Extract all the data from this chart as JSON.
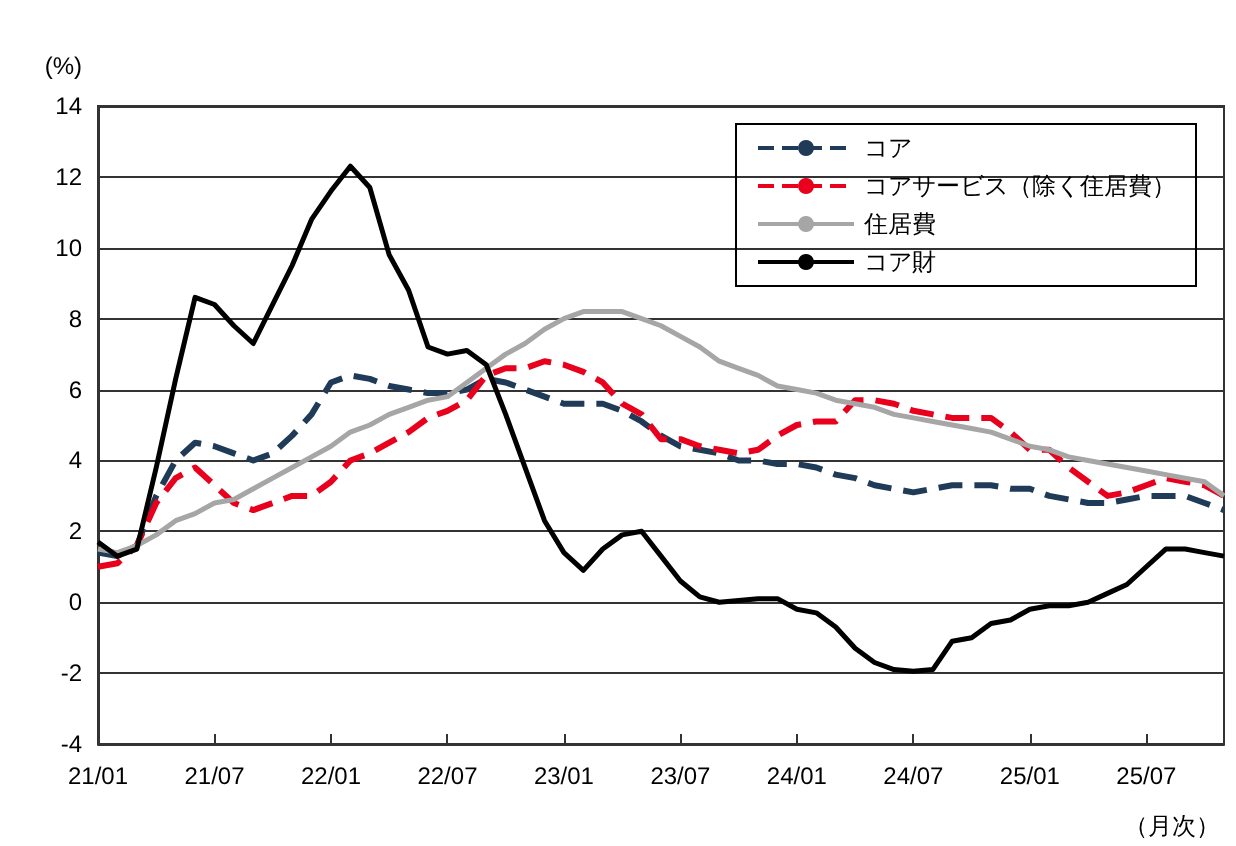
{
  "chart_data": {
    "type": "line",
    "ylabel": "(%)",
    "xlabel": "（月次）",
    "categories": [
      "21/01",
      null,
      null,
      null,
      null,
      null,
      "21/07",
      null,
      null,
      null,
      null,
      null,
      "22/01",
      null,
      null,
      null,
      null,
      null,
      "22/07",
      null,
      null,
      null,
      null,
      null,
      "23/01",
      null,
      null,
      null,
      null,
      null,
      "23/07",
      null,
      null,
      null,
      null,
      null,
      "24/01",
      null,
      null,
      null,
      null,
      null,
      "24/07",
      null,
      null,
      null,
      null,
      null,
      "25/01",
      null,
      null,
      null,
      null,
      null,
      "25/07",
      null,
      null,
      null,
      null
    ],
    "series": [
      {
        "name": "コア",
        "color": "#1f3b57",
        "line_style": "dashed",
        "values": [
          1.4,
          1.3,
          1.6,
          3.0,
          4.0,
          4.5,
          4.4,
          4.2,
          4.0,
          4.2,
          4.7,
          5.3,
          6.2,
          6.4,
          6.3,
          6.1,
          6.0,
          5.9,
          5.9,
          6.0,
          6.3,
          6.2,
          6.0,
          5.8,
          5.6,
          5.6,
          5.6,
          5.4,
          5.1,
          4.7,
          4.4,
          4.3,
          4.2,
          4.0,
          4.0,
          3.9,
          3.9,
          3.8,
          3.6,
          3.5,
          3.3,
          3.2,
          3.1,
          3.2,
          3.3,
          3.3,
          3.3,
          3.2,
          3.2,
          3.0,
          2.9,
          2.8,
          2.8,
          2.9,
          3.0,
          3.0,
          3.0,
          2.8,
          2.6
        ]
      },
      {
        "name": "コアサービス（除く住居費）",
        "color": "#e8001c",
        "line_style": "dashed",
        "values": [
          1.0,
          1.1,
          1.6,
          2.8,
          3.5,
          3.8,
          3.3,
          2.8,
          2.6,
          2.8,
          3.0,
          3.0,
          3.4,
          4.0,
          4.2,
          4.5,
          4.8,
          5.2,
          5.4,
          5.7,
          6.4,
          6.6,
          6.6,
          6.8,
          6.7,
          6.5,
          6.2,
          5.6,
          5.3,
          4.6,
          4.6,
          4.4,
          4.3,
          4.2,
          4.3,
          4.7,
          5.0,
          5.1,
          5.1,
          5.7,
          5.7,
          5.6,
          5.4,
          5.3,
          5.2,
          5.2,
          5.2,
          4.8,
          4.3,
          4.3,
          3.8,
          3.4,
          3.0,
          3.1,
          3.3,
          3.5,
          3.4,
          3.3,
          3.0
        ]
      },
      {
        "name": "住居費",
        "color": "#a6a6a6",
        "line_style": "solid",
        "values": [
          1.5,
          1.4,
          1.6,
          1.9,
          2.3,
          2.5,
          2.8,
          2.9,
          3.2,
          3.5,
          3.8,
          4.1,
          4.4,
          4.8,
          5.0,
          5.3,
          5.5,
          5.7,
          5.8,
          6.2,
          6.6,
          7.0,
          7.3,
          7.7,
          8.0,
          8.2,
          8.2,
          8.2,
          8.0,
          7.8,
          7.5,
          7.2,
          6.8,
          6.6,
          6.4,
          6.1,
          6.0,
          5.9,
          5.7,
          5.6,
          5.5,
          5.3,
          5.2,
          5.1,
          5.0,
          4.9,
          4.8,
          4.6,
          4.4,
          4.3,
          4.1,
          4.0,
          3.9,
          3.8,
          3.7,
          3.6,
          3.5,
          3.4,
          3.0
        ]
      },
      {
        "name": "コア財",
        "color": "#000000",
        "line_style": "solid",
        "values": [
          1.7,
          1.3,
          1.5,
          3.8,
          6.3,
          8.6,
          8.4,
          7.8,
          7.3,
          8.4,
          9.5,
          10.8,
          11.6,
          12.3,
          11.7,
          9.8,
          8.8,
          7.2,
          7.0,
          7.1,
          6.7,
          5.3,
          3.8,
          2.3,
          1.4,
          0.9,
          1.5,
          1.9,
          2.0,
          1.3,
          0.6,
          0.15,
          0.0,
          0.05,
          0.1,
          0.1,
          -0.2,
          -0.3,
          -0.7,
          -1.3,
          -1.7,
          -1.9,
          -1.95,
          -1.9,
          -1.1,
          -1.0,
          -0.6,
          -0.5,
          -0.2,
          -0.1,
          -0.1,
          0.0,
          0.25,
          0.5,
          1.0,
          1.5,
          1.5,
          1.4,
          1.3
        ]
      }
    ],
    "ylim": [
      -4,
      14
    ],
    "yticks": [
      -4,
      -2,
      0,
      2,
      4,
      6,
      8,
      10,
      12,
      14
    ],
    "grid": "y",
    "legend": "top right",
    "marker": "none"
  }
}
